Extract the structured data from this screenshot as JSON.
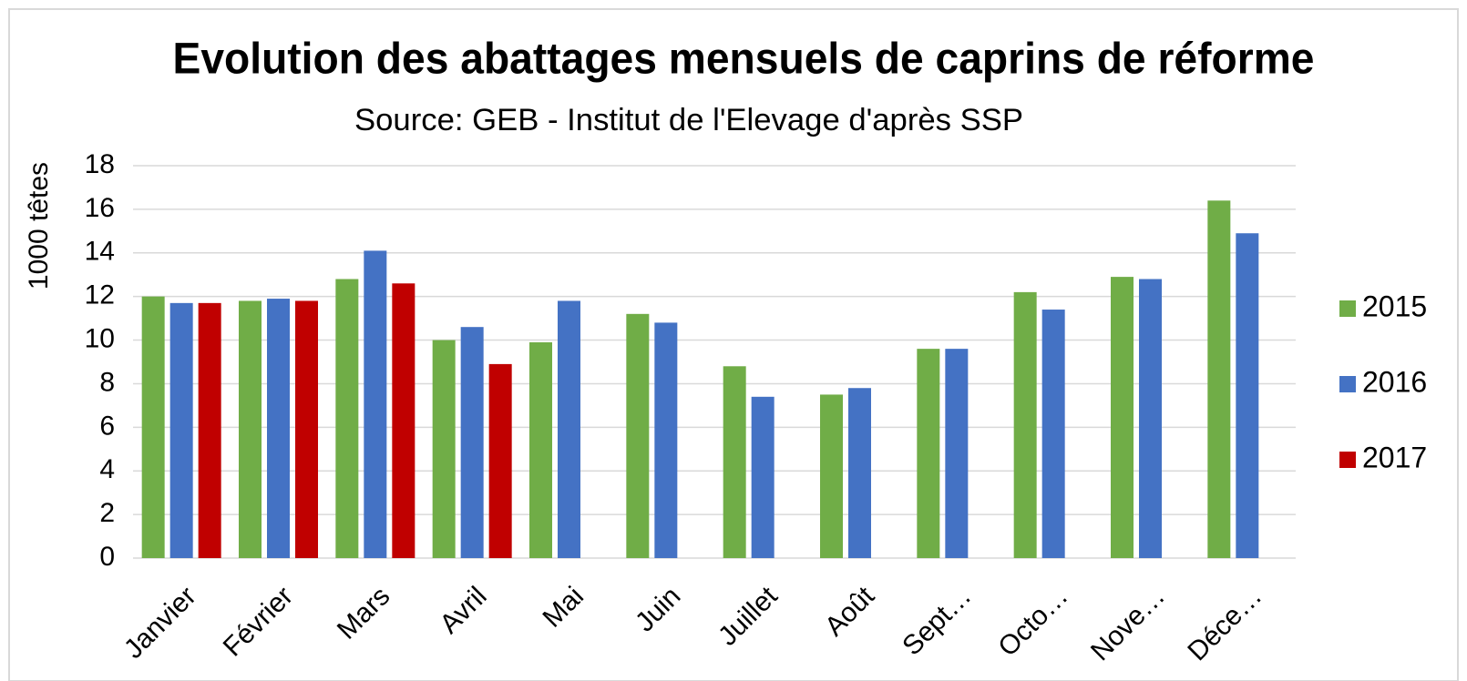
{
  "chart_data": {
    "type": "bar",
    "title": "Evolution des abattages mensuels de caprins de réforme",
    "subtitle": "Source: GEB - Institut de l'Elevage d'après SSP",
    "y_label": "1000 têtes",
    "categories": [
      "Janvier",
      "Février",
      "Mars",
      "Avril",
      "Mai",
      "Juin",
      "Juillet",
      "Août",
      "Sept…",
      "Octo…",
      "Nove…",
      "Déce…"
    ],
    "series": [
      {
        "name": "2015",
        "color": "#70ad47",
        "values": [
          12.0,
          11.8,
          12.8,
          10.0,
          9.9,
          11.2,
          8.8,
          7.5,
          9.6,
          12.2,
          12.9,
          16.4
        ]
      },
      {
        "name": "2016",
        "color": "#4472c4",
        "values": [
          11.7,
          11.9,
          14.1,
          10.6,
          11.8,
          10.8,
          7.4,
          7.8,
          9.6,
          11.4,
          12.8,
          14.9
        ]
      },
      {
        "name": "2017",
        "color": "#c00000",
        "values": [
          11.7,
          11.8,
          12.6,
          8.9,
          null,
          null,
          null,
          null,
          null,
          null,
          null,
          null
        ]
      }
    ],
    "ylim": [
      0,
      18
    ],
    "yticks": [
      0,
      2,
      4,
      6,
      8,
      10,
      12,
      14,
      16,
      18
    ],
    "grid": true,
    "legend": "right"
  }
}
